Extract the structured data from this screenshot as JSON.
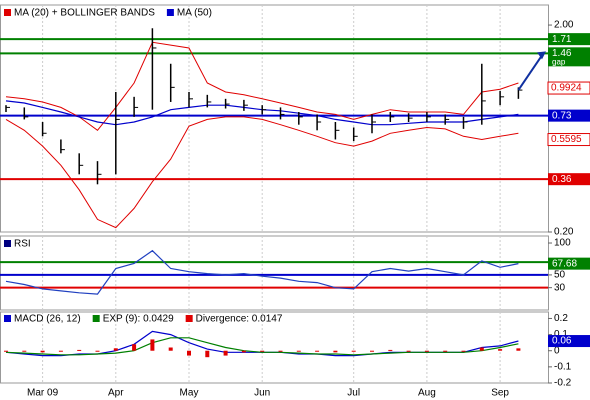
{
  "chart_data": [
    {
      "type": "ohlc",
      "log": true,
      "ylim": [
        0.2,
        2.5
      ],
      "yticks": [
        {
          "value": 2,
          "label": "2.00"
        },
        {
          "value": 0.2,
          "label": "0.20"
        }
      ],
      "high": [
        0.82,
        0.8,
        0.68,
        0.56,
        0.48,
        0.44,
        0.95,
        0.9,
        1.93,
        1.3,
        0.95,
        0.92,
        0.88,
        0.87,
        0.82,
        0.8,
        0.76,
        0.74,
        0.68,
        0.64,
        0.74,
        0.76,
        0.75,
        0.76,
        0.74,
        0.72,
        1.3,
        0.96,
        1.0
      ],
      "low": [
        0.76,
        0.7,
        0.58,
        0.48,
        0.38,
        0.34,
        0.38,
        0.72,
        0.78,
        0.85,
        0.8,
        0.8,
        0.79,
        0.77,
        0.74,
        0.7,
        0.66,
        0.62,
        0.56,
        0.55,
        0.6,
        0.68,
        0.68,
        0.68,
        0.66,
        0.63,
        0.66,
        0.82,
        0.88
      ],
      "close": [
        0.8,
        0.72,
        0.6,
        0.5,
        0.42,
        0.38,
        0.7,
        0.8,
        1.55,
        1.0,
        0.88,
        0.85,
        0.83,
        0.82,
        0.78,
        0.74,
        0.72,
        0.68,
        0.62,
        0.58,
        0.68,
        0.72,
        0.71,
        0.72,
        0.7,
        0.68,
        0.86,
        0.9,
        0.97
      ],
      "series": [
        {
          "name": "MA (20) + BOLLINGER BANDS",
          "color": "#e00000",
          "upper": [
            0.9,
            0.88,
            0.85,
            0.8,
            0.72,
            0.62,
            0.8,
            1.05,
            1.65,
            1.6,
            1.55,
            1.05,
            0.95,
            0.92,
            0.88,
            0.84,
            0.8,
            0.76,
            0.74,
            0.7,
            0.74,
            0.78,
            0.76,
            0.76,
            0.76,
            0.74,
            0.95,
            0.98,
            1.05
          ],
          "lower": [
            0.7,
            0.62,
            0.52,
            0.42,
            0.32,
            0.23,
            0.21,
            0.26,
            0.35,
            0.45,
            0.65,
            0.7,
            0.72,
            0.72,
            0.7,
            0.66,
            0.62,
            0.58,
            0.54,
            0.52,
            0.55,
            0.6,
            0.62,
            0.64,
            0.63,
            0.58,
            0.56,
            0.58,
            0.6
          ]
        },
        {
          "name": "MA (50)",
          "color": "#0000cc",
          "values": [
            0.86,
            0.84,
            0.8,
            0.76,
            0.72,
            0.68,
            0.66,
            0.68,
            0.72,
            0.78,
            0.8,
            0.82,
            0.82,
            0.8,
            0.78,
            0.77,
            0.75,
            0.73,
            0.7,
            0.68,
            0.66,
            0.66,
            0.67,
            0.68,
            0.68,
            0.68,
            0.7,
            0.72,
            0.74
          ]
        }
      ],
      "levels": [
        {
          "value": 1.71,
          "color": "#008000"
        },
        {
          "value": 1.46,
          "color": "#008000"
        },
        {
          "value": 0.73,
          "color": "#0000cc"
        },
        {
          "value": 0.36,
          "color": "#e00000"
        }
      ],
      "price_labels": [
        {
          "value": 0.9924,
          "color": "#e00000"
        },
        {
          "value": 0.5595,
          "color": "#e00000"
        }
      ],
      "annotation": "gap"
    },
    {
      "type": "line",
      "title": "RSI",
      "color": "#2040c0",
      "ylim": [
        -5,
        111
      ],
      "yticks": [
        100,
        50,
        30
      ],
      "values": [
        40,
        35,
        28,
        25,
        22,
        20,
        60,
        68,
        88,
        60,
        55,
        52,
        50,
        52,
        48,
        45,
        40,
        38,
        30,
        28,
        55,
        60,
        56,
        60,
        55,
        50,
        72,
        62,
        67.68
      ],
      "levels": [
        {
          "value": 70,
          "color": "#008000"
        },
        {
          "value": 50,
          "color": "#0000cc"
        },
        {
          "value": 30,
          "color": "#e00000"
        }
      ]
    },
    {
      "type": "macd",
      "ylim": [
        -0.2,
        0.24
      ],
      "yticks": [
        0.2,
        0.1,
        0,
        -0.1,
        -0.2
      ],
      "categories": [
        null,
        null,
        "Mar 09",
        null,
        null,
        null,
        "Apr",
        null,
        null,
        null,
        "May",
        null,
        null,
        null,
        "Jun",
        null,
        null,
        null,
        null,
        "Jul",
        null,
        null,
        null,
        "Aug",
        null,
        null,
        null,
        "Sep",
        null
      ],
      "series": [
        {
          "name": "MACD (26, 12)",
          "color": "#0000cc",
          "values": [
            -0.01,
            -0.02,
            -0.03,
            -0.03,
            -0.02,
            -0.02,
            0.0,
            0.04,
            0.12,
            0.1,
            0.05,
            0.01,
            -0.01,
            -0.01,
            -0.01,
            -0.01,
            -0.02,
            -0.02,
            -0.03,
            -0.03,
            -0.02,
            -0.01,
            -0.01,
            -0.01,
            -0.01,
            -0.01,
            0.02,
            0.03,
            0.06
          ]
        },
        {
          "name": "EXP (9): 0.0429",
          "color": "#008000",
          "values": [
            -0.01,
            -0.015,
            -0.02,
            -0.025,
            -0.025,
            -0.02,
            -0.015,
            0.0,
            0.05,
            0.08,
            0.08,
            0.05,
            0.02,
            0.0,
            -0.01,
            -0.01,
            -0.015,
            -0.02,
            -0.02,
            -0.025,
            -0.02,
            -0.015,
            -0.01,
            -0.01,
            -0.01,
            -0.01,
            0.0,
            0.02,
            0.0429
          ]
        },
        {
          "name": "Divergence: 0.0147",
          "color": "#e00000",
          "bars": true,
          "values": [
            0,
            -0.005,
            -0.01,
            -0.005,
            0.005,
            0,
            0.015,
            0.04,
            0.07,
            0.02,
            -0.03,
            -0.04,
            -0.03,
            -0.01,
            0,
            0,
            -0.005,
            0,
            -0.01,
            -0.005,
            0,
            0.005,
            0,
            0,
            0,
            0,
            0.02,
            0.01,
            0.0147
          ]
        }
      ]
    }
  ]
}
